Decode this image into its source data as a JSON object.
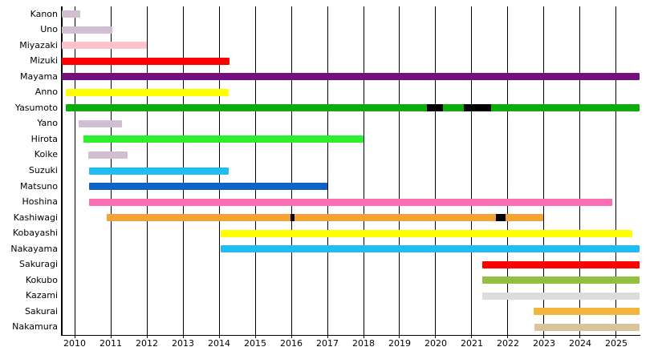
{
  "chart_data": {
    "type": "bar",
    "subtype": "horizontal-gantt-timeline",
    "title": "",
    "xlabel": "",
    "ylabel": "",
    "legend": "none",
    "grid": "vertical-year-lines",
    "x_axis": {
      "min": 2009.644,
      "max": 2025.667,
      "ticks": [
        2010,
        2011,
        2012,
        2013,
        2014,
        2015,
        2016,
        2017,
        2018,
        2019,
        2020,
        2021,
        2022,
        2023,
        2024,
        2025
      ]
    },
    "break_color": "#000000",
    "rows": [
      {
        "label": "Kanon",
        "color": "#D2BED2",
        "start": 2009.645,
        "end": 2010.15,
        "breaks": []
      },
      {
        "label": "Uno",
        "color": "#D2BED2",
        "start": 2009.645,
        "end": 2011.05,
        "breaks": []
      },
      {
        "label": "Miyazaki",
        "color": "#FFC3CE",
        "start": 2009.645,
        "end": 2012.0,
        "breaks": []
      },
      {
        "label": "Mizuki",
        "color": "#FF0000",
        "start": 2009.645,
        "end": 2014.3,
        "breaks": []
      },
      {
        "label": "Mayama",
        "color": "#74107E",
        "start": 2009.645,
        "end": 2025.645,
        "breaks": []
      },
      {
        "label": "Anno",
        "color": "#FFFF00",
        "start": 2009.75,
        "end": 2014.27,
        "breaks": []
      },
      {
        "label": "Yasumoto",
        "color": "#0CAC0C",
        "start": 2009.75,
        "end": 2025.645,
        "breaks": [
          {
            "start": 2019.75,
            "end": 2020.19
          },
          {
            "start": 2020.78,
            "end": 2021.53
          }
        ]
      },
      {
        "label": "Yano",
        "color": "#D2BED2",
        "start": 2010.1,
        "end": 2011.3,
        "breaks": []
      },
      {
        "label": "Hirota",
        "color": "#2BF02B",
        "start": 2010.25,
        "end": 2018.0,
        "breaks": []
      },
      {
        "label": "Koike",
        "color": "#D2BED2",
        "start": 2010.38,
        "end": 2011.47,
        "breaks": []
      },
      {
        "label": "Suzuki",
        "color": "#1FBDF2",
        "start": 2010.4,
        "end": 2014.27,
        "breaks": []
      },
      {
        "label": "Matsuno",
        "color": "#0E63C6",
        "start": 2010.4,
        "end": 2017.0,
        "breaks": []
      },
      {
        "label": "Hoshina",
        "color": "#FB6CB6",
        "start": 2010.4,
        "end": 2024.88,
        "breaks": []
      },
      {
        "label": "Kashiwagi",
        "color": "#F5A234",
        "start": 2010.88,
        "end": 2022.97,
        "breaks": [
          {
            "start": 2015.98,
            "end": 2016.09
          },
          {
            "start": 2021.67,
            "end": 2021.93
          }
        ]
      },
      {
        "label": "Kobayashi",
        "color": "#FFFF00",
        "start": 2014.05,
        "end": 2025.44,
        "breaks": []
      },
      {
        "label": "Nakayama",
        "color": "#1FBDF2",
        "start": 2014.05,
        "end": 2025.645,
        "breaks": []
      },
      {
        "label": "Sakuragi",
        "color": "#FF0000",
        "start": 2021.3,
        "end": 2025.645,
        "breaks": []
      },
      {
        "label": "Kokubo",
        "color": "#90C040",
        "start": 2021.3,
        "end": 2025.645,
        "breaks": []
      },
      {
        "label": "Kazami",
        "color": "#DCDCDC",
        "start": 2021.3,
        "end": 2025.645,
        "breaks": []
      },
      {
        "label": "Sakurai",
        "color": "#F2B53B",
        "start": 2022.72,
        "end": 2025.645,
        "breaks": []
      },
      {
        "label": "Nakamura",
        "color": "#D9C49E",
        "start": 2022.73,
        "end": 2025.645,
        "breaks": []
      }
    ]
  },
  "colors": {
    "background": "#ffffff",
    "grid": "#000000",
    "axis": "#000000",
    "text": "#000000"
  }
}
